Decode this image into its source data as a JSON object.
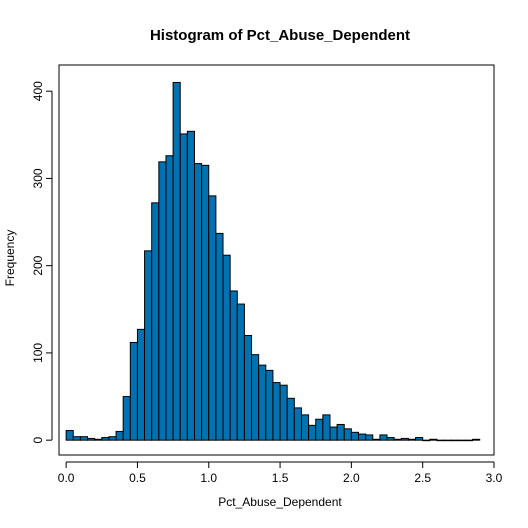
{
  "chart_data": {
    "type": "bar",
    "title": "Histogram of Pct_Abuse_Dependent",
    "xlabel": "Pct_Abuse_Dependent",
    "ylabel": "Frequency",
    "bin_width": 0.05,
    "bin_start": 0.0,
    "values": [
      11,
      4,
      4,
      2,
      1,
      3,
      4,
      10,
      50,
      112,
      127,
      217,
      272,
      319,
      326,
      410,
      351,
      354,
      317,
      315,
      280,
      237,
      212,
      171,
      156,
      120,
      98,
      86,
      80,
      66,
      63,
      48,
      37,
      29,
      17,
      24,
      29,
      15,
      18,
      13,
      9,
      7,
      6,
      1,
      6,
      3,
      1,
      2,
      1,
      3,
      0,
      1,
      0,
      0,
      0,
      0,
      0,
      1
    ],
    "xlim": [
      -0.05,
      3.0
    ],
    "ylim": [
      -17,
      430
    ],
    "xticks": [
      0.0,
      0.5,
      1.0,
      1.5,
      2.0,
      2.5,
      3.0
    ],
    "xtick_labels": [
      "0.0",
      "0.5",
      "1.0",
      "1.5",
      "2.0",
      "2.5",
      "3.0"
    ],
    "yticks": [
      0,
      100,
      200,
      300,
      400
    ],
    "ytick_labels": [
      "0",
      "100",
      "200",
      "300",
      "400"
    ],
    "bar_color": "#0072b2",
    "grid": false,
    "legend": "none"
  }
}
